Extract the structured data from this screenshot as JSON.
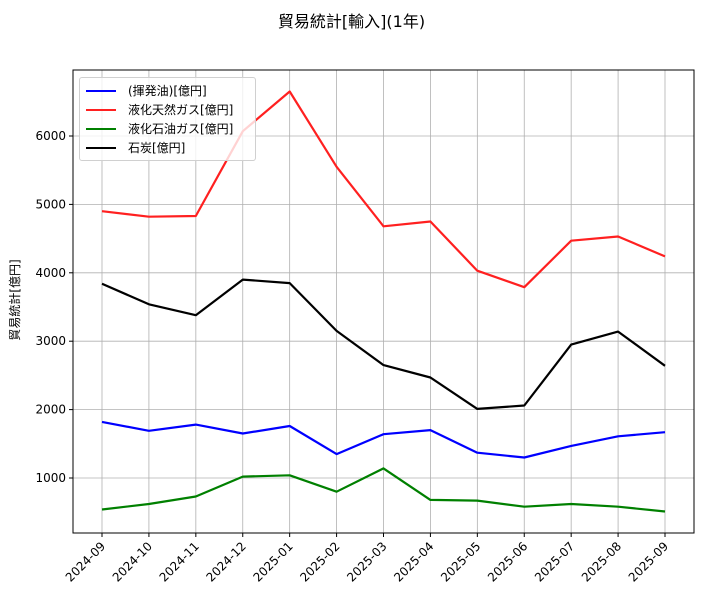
{
  "title": "貿易統計[輸入](1年)",
  "ylabel": "貿易統計[億円]",
  "legend": [
    {
      "label": "(揮発油)[億円]",
      "color": "#0000ff"
    },
    {
      "label": "液化天然ガス[億円]",
      "color": "#ff0000"
    },
    {
      "label": "液化石油ガス[億円]",
      "color": "#008000"
    },
    {
      "label": "石炭[億円]",
      "color": "#000000"
    }
  ],
  "chart_data": {
    "type": "line",
    "title": "貿易統計[輸入](1年)",
    "xlabel": "",
    "ylabel": "貿易統計[億円]",
    "categories": [
      "2024-09",
      "2024-10",
      "2024-11",
      "2024-12",
      "2025-01",
      "2025-02",
      "2025-03",
      "2025-04",
      "2025-05",
      "2025-06",
      "2025-07",
      "2025-08",
      "2025-09"
    ],
    "yticks": [
      1000,
      2000,
      3000,
      4000,
      5000,
      6000
    ],
    "ylim": [
      210,
      6980
    ],
    "grid": true,
    "legend_position": "upper left",
    "series": [
      {
        "name": "(揮発油)[億円]",
        "color": "#0000ff",
        "values": [
          1820,
          1690,
          1780,
          1650,
          1760,
          1350,
          1640,
          1700,
          1370,
          1300,
          1470,
          1610,
          1670
        ]
      },
      {
        "name": "液化天然ガス[億円]",
        "color": "#ff0000",
        "values": [
          4900,
          4820,
          4830,
          6070,
          6650,
          5550,
          4680,
          4750,
          4030,
          3790,
          4470,
          4530,
          4240
        ]
      },
      {
        "name": "液化石油ガス[億円]",
        "color": "#008000",
        "values": [
          540,
          620,
          730,
          1020,
          1040,
          800,
          1140,
          680,
          670,
          580,
          620,
          580,
          510
        ]
      },
      {
        "name": "石炭[億円]",
        "color": "#000000",
        "values": [
          3840,
          3540,
          3380,
          3900,
          3850,
          3150,
          2650,
          2470,
          2010,
          2060,
          2950,
          3140,
          2640
        ]
      }
    ]
  }
}
